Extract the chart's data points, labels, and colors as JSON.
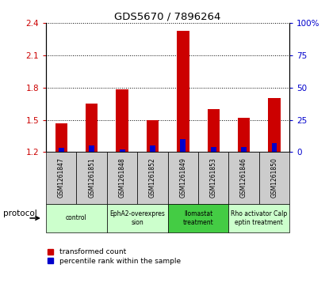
{
  "title": "GDS5670 / 7896264",
  "samples": [
    "GSM1261847",
    "GSM1261851",
    "GSM1261848",
    "GSM1261852",
    "GSM1261849",
    "GSM1261853",
    "GSM1261846",
    "GSM1261850"
  ],
  "transformed_counts": [
    1.47,
    1.65,
    1.78,
    1.5,
    2.33,
    1.6,
    1.52,
    1.7
  ],
  "percentile_ranks": [
    3,
    5,
    2,
    5,
    10,
    4,
    4,
    7
  ],
  "ylim_left": [
    1.2,
    2.4
  ],
  "ylim_right": [
    0,
    100
  ],
  "yticks_left": [
    1.2,
    1.5,
    1.8,
    2.1,
    2.4
  ],
  "yticks_right": [
    0,
    25,
    50,
    75,
    100
  ],
  "ytick_labels_right": [
    "0",
    "25",
    "50",
    "75",
    "100%"
  ],
  "bar_color_red": "#cc0000",
  "bar_color_blue": "#0000cc",
  "bar_width": 0.4,
  "protocol_groups": [
    {
      "label": "control",
      "start": 0,
      "end": 1,
      "color": "#ccffcc"
    },
    {
      "label": "EphA2-overexpres\nsion",
      "start": 2,
      "end": 3,
      "color": "#ccffcc"
    },
    {
      "label": "Ilomastat\ntreatment",
      "start": 4,
      "end": 5,
      "color": "#44cc44"
    },
    {
      "label": "Rho activator Calp\neptin treatment",
      "start": 6,
      "end": 7,
      "color": "#ccffcc"
    }
  ],
  "grid_color": "#000000",
  "tick_label_color_left": "#cc0000",
  "tick_label_color_right": "#0000cc",
  "sample_box_color": "#cccccc",
  "protocol_label": "protocol",
  "legend_red_label": "transformed count",
  "legend_blue_label": "percentile rank within the sample",
  "base_value": 1.2
}
